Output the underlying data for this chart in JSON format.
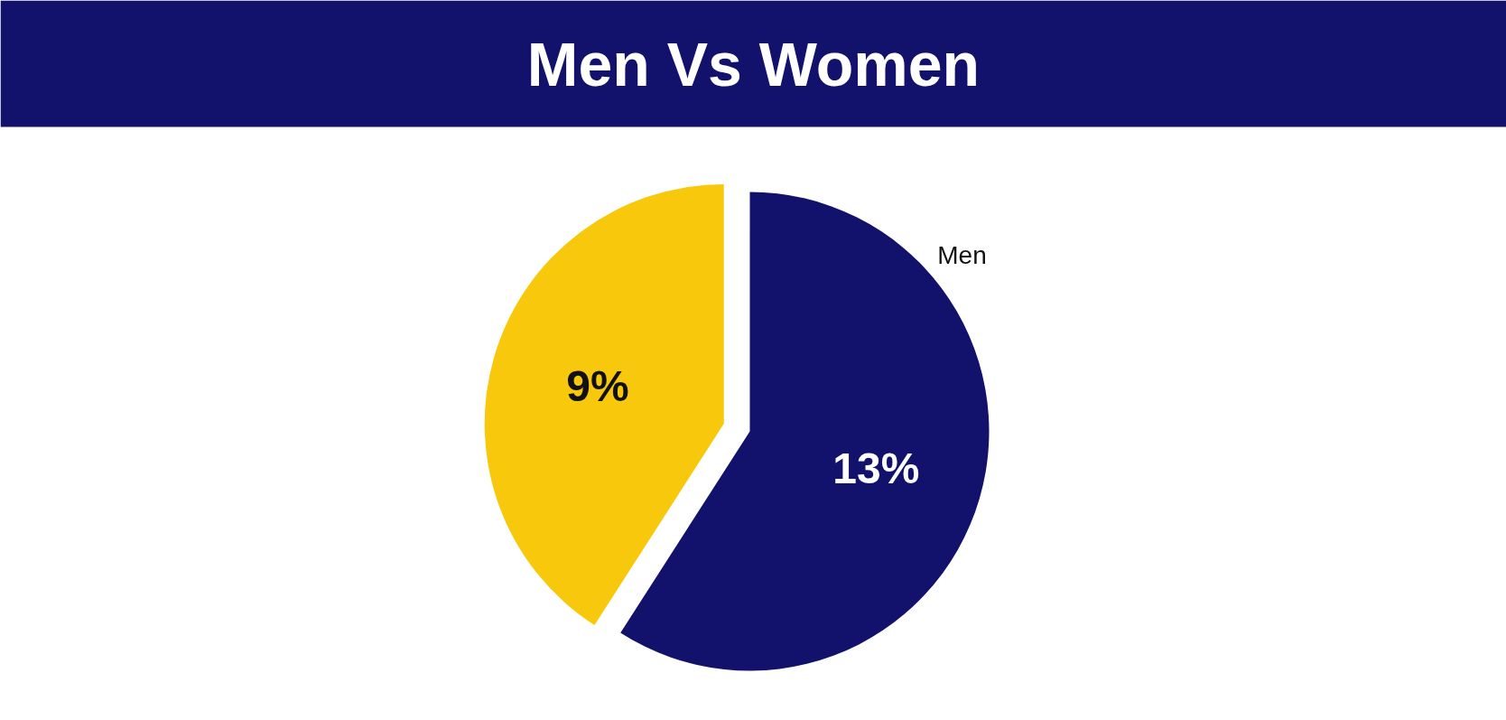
{
  "chart_data": {
    "type": "pie",
    "title": "Men Vs Women",
    "categories": [
      null,
      "Men"
    ],
    "values": [
      9,
      13
    ],
    "colors": [
      "#f8c80c",
      "#12116b"
    ],
    "value_labels": [
      "9%",
      "13%"
    ]
  }
}
